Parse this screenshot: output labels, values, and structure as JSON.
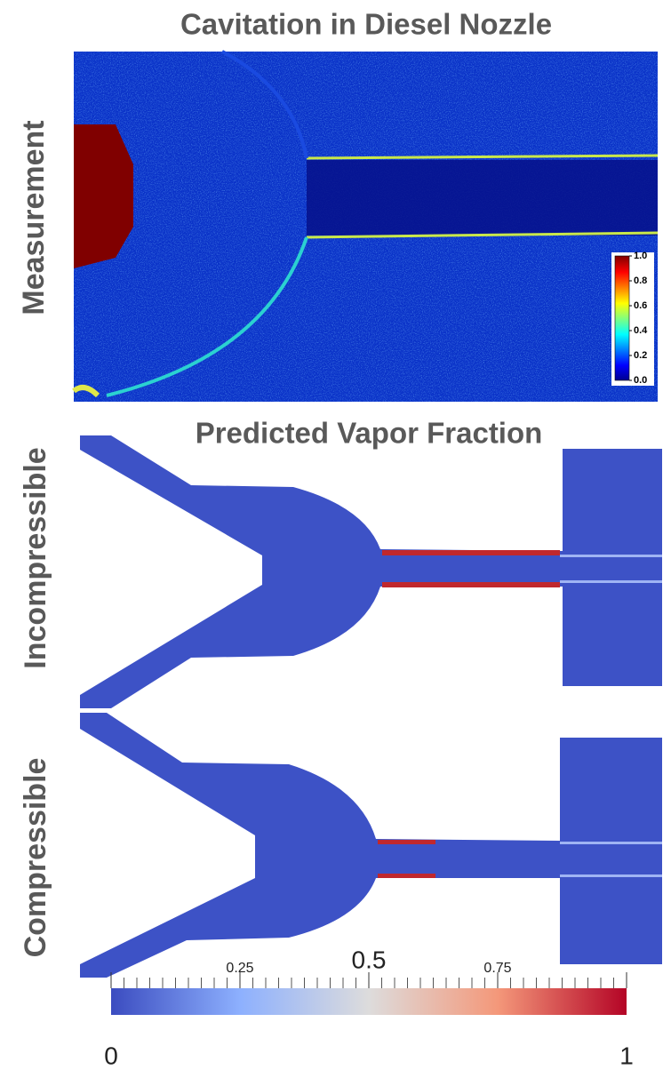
{
  "title": "Cavitation in Diesel Nozzle",
  "subtitle": "Predicted Vapor Fraction",
  "panels": [
    {
      "label": "Measurement"
    },
    {
      "label": "Incompressible"
    },
    {
      "label": "Compressible"
    }
  ],
  "measurement_colorbar": {
    "range": [
      0,
      1
    ],
    "ticks": [
      {
        "value": 0,
        "label": "0.0"
      },
      {
        "value": 0.2,
        "label": "0.2"
      },
      {
        "value": 0.4,
        "label": "0.4"
      },
      {
        "value": 0.6,
        "label": "0.6"
      },
      {
        "value": 0.8,
        "label": "0.8"
      },
      {
        "value": 1,
        "label": "1.0"
      }
    ]
  },
  "vapor_colorbar": {
    "range": [
      0,
      1
    ],
    "ticks": [
      0,
      0.25,
      0.5,
      0.75,
      1
    ]
  }
}
